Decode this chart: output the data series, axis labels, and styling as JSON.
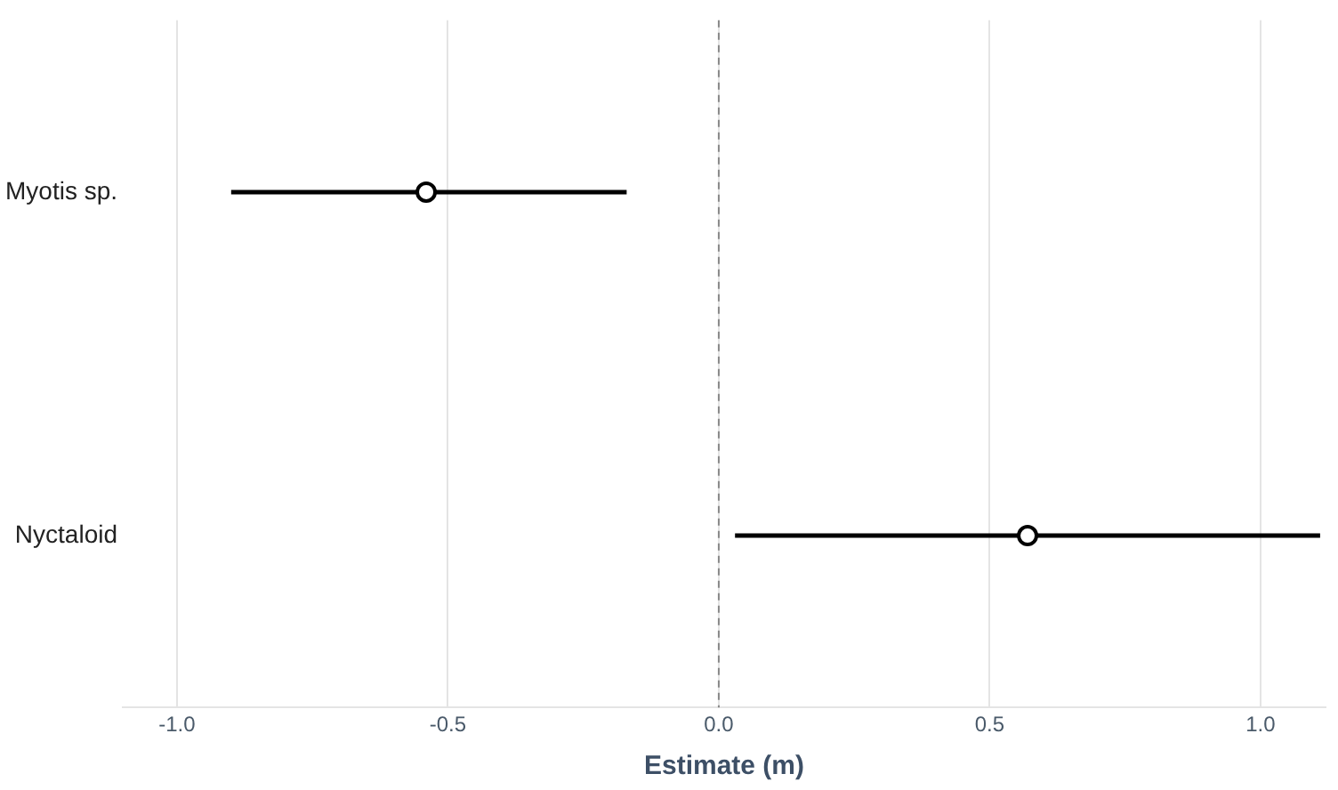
{
  "chart_data": {
    "type": "scatter",
    "orientation": "horizontal",
    "categories": [
      "Myotis sp.",
      "Nyctaloid"
    ],
    "values": [
      -0.54,
      0.57
    ],
    "errors": [
      [
        -0.9,
        -0.17
      ],
      [
        0.03,
        1.11
      ]
    ],
    "color": "#000000",
    "marker": "circle",
    "xlabel": "Estimate (m)",
    "xlim": [
      -1.1,
      1.12
    ],
    "xticks": [
      {
        "value": -1,
        "label": "-1.0"
      },
      {
        "value": -0.5,
        "label": "-0.5"
      },
      {
        "value": 0,
        "label": "0.0"
      },
      {
        "value": 0.5,
        "label": "0.5"
      },
      {
        "value": 1,
        "label": "1.0"
      }
    ],
    "ref_lines": [
      {
        "axis": "x",
        "value": 0,
        "color": "#888888",
        "line_style": "dashed"
      }
    ],
    "grid": "x",
    "legend": false
  }
}
